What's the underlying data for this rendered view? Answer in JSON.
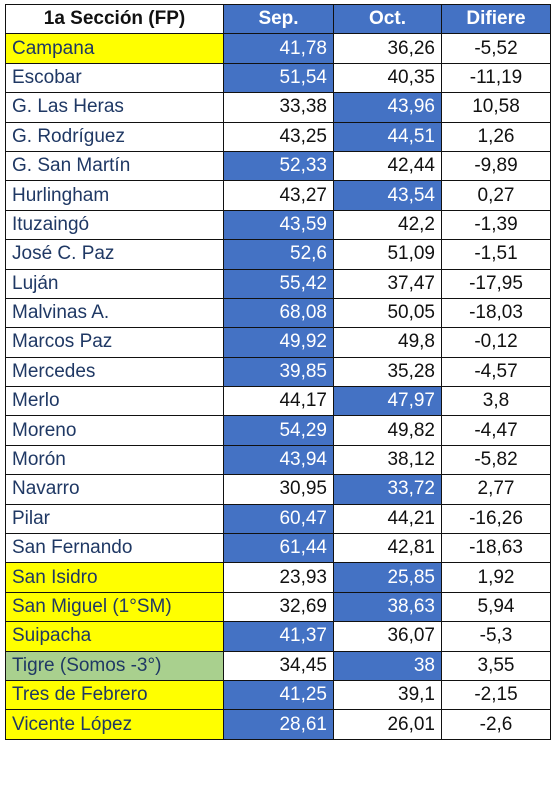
{
  "header": {
    "section": "1a Sección (FP)",
    "sep": "Sep.",
    "oct": "Oct.",
    "diff": "Difiere"
  },
  "colors": {
    "blue_highlight": "#4472c4",
    "yellow_highlight": "#ffff00",
    "green_highlight": "#a9d08e",
    "name_text": "#1f3864"
  },
  "rows": [
    {
      "name": "Campana",
      "sep": "41,78",
      "oct": "36,26",
      "diff": "-5,52",
      "winner": "sep",
      "name_highlight": "yellow"
    },
    {
      "name": "Escobar",
      "sep": "51,54",
      "oct": "40,35",
      "diff": "-11,19",
      "winner": "sep",
      "name_highlight": "none"
    },
    {
      "name": "G. Las Heras",
      "sep": "33,38",
      "oct": "43,96",
      "diff": "10,58",
      "winner": "oct",
      "name_highlight": "none"
    },
    {
      "name": "G. Rodríguez",
      "sep": "43,25",
      "oct": "44,51",
      "diff": "1,26",
      "winner": "oct",
      "name_highlight": "none"
    },
    {
      "name": "G. San Martín",
      "sep": "52,33",
      "oct": "42,44",
      "diff": "-9,89",
      "winner": "sep",
      "name_highlight": "none"
    },
    {
      "name": "Hurlingham",
      "sep": "43,27",
      "oct": "43,54",
      "diff": "0,27",
      "winner": "oct",
      "name_highlight": "none"
    },
    {
      "name": "Ituzaingó",
      "sep": "43,59",
      "oct": "42,2",
      "diff": "-1,39",
      "winner": "sep",
      "name_highlight": "none"
    },
    {
      "name": "José C. Paz",
      "sep": "52,6",
      "oct": "51,09",
      "diff": "-1,51",
      "winner": "sep",
      "name_highlight": "none"
    },
    {
      "name": "Luján",
      "sep": "55,42",
      "oct": "37,47",
      "diff": "-17,95",
      "winner": "sep",
      "name_highlight": "none"
    },
    {
      "name": "Malvinas A.",
      "sep": "68,08",
      "oct": "50,05",
      "diff": "-18,03",
      "winner": "sep",
      "name_highlight": "none"
    },
    {
      "name": "Marcos Paz",
      "sep": "49,92",
      "oct": "49,8",
      "diff": "-0,12",
      "winner": "sep",
      "name_highlight": "none"
    },
    {
      "name": "Mercedes",
      "sep": "39,85",
      "oct": "35,28",
      "diff": "-4,57",
      "winner": "sep",
      "name_highlight": "none"
    },
    {
      "name": "Merlo",
      "sep": "44,17",
      "oct": "47,97",
      "diff": "3,8",
      "winner": "oct",
      "name_highlight": "none"
    },
    {
      "name": "Moreno",
      "sep": "54,29",
      "oct": "49,82",
      "diff": "-4,47",
      "winner": "sep",
      "name_highlight": "none"
    },
    {
      "name": "Morón",
      "sep": "43,94",
      "oct": "38,12",
      "diff": "-5,82",
      "winner": "sep",
      "name_highlight": "none"
    },
    {
      "name": "Navarro",
      "sep": "30,95",
      "oct": "33,72",
      "diff": "2,77",
      "winner": "oct",
      "name_highlight": "none"
    },
    {
      "name": "Pilar",
      "sep": "60,47",
      "oct": "44,21",
      "diff": "-16,26",
      "winner": "sep",
      "name_highlight": "none"
    },
    {
      "name": "San Fernando",
      "sep": "61,44",
      "oct": "42,81",
      "diff": "-18,63",
      "winner": "sep",
      "name_highlight": "none"
    },
    {
      "name": "San Isidro",
      "sep": "23,93",
      "oct": "25,85",
      "diff": "1,92",
      "winner": "oct",
      "name_highlight": "yellow"
    },
    {
      "name": "San Miguel (1°SM)",
      "sep": "32,69",
      "oct": "38,63",
      "diff": "5,94",
      "winner": "oct",
      "name_highlight": "yellow"
    },
    {
      "name": "Suipacha",
      "sep": "41,37",
      "oct": "36,07",
      "diff": "-5,3",
      "winner": "sep",
      "name_highlight": "yellow"
    },
    {
      "name": "Tigre (Somos -3°)",
      "sep": "34,45",
      "oct": "38",
      "diff": "3,55",
      "winner": "oct",
      "name_highlight": "green"
    },
    {
      "name": "Tres de Febrero",
      "sep": "41,25",
      "oct": "39,1",
      "diff": "-2,15",
      "winner": "sep",
      "name_highlight": "yellow"
    },
    {
      "name": "Vicente López",
      "sep": "28,61",
      "oct": "26,01",
      "diff": "-2,6",
      "winner": "sep",
      "name_highlight": "yellow"
    }
  ]
}
